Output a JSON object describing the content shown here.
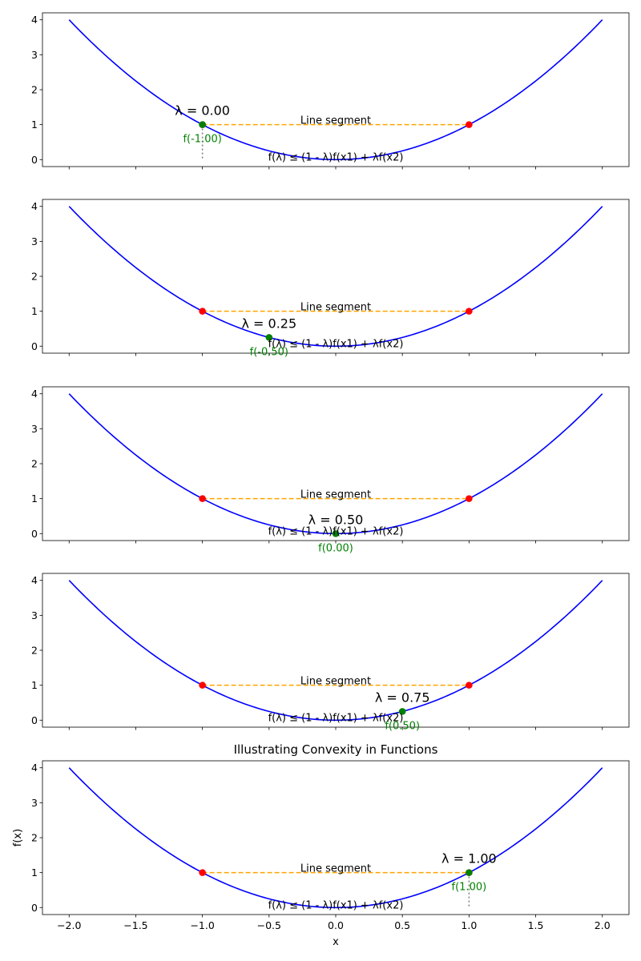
{
  "chart_data": [
    {
      "type": "line",
      "title": "",
      "xlabel": "",
      "ylabel": "",
      "xlim": [
        -2.2,
        2.2
      ],
      "ylim": [
        -0.2,
        4.2
      ],
      "xticks": [
        -2.0,
        -1.5,
        -1.0,
        -0.5,
        0.0,
        0.5,
        1.0,
        1.5,
        2.0
      ],
      "xtick_labels": [],
      "yticks": [
        0,
        1,
        2,
        3,
        4
      ],
      "ytick_labels": [
        "0",
        "1",
        "2",
        "3",
        "4"
      ],
      "function": {
        "expression": "x^2",
        "domain": [
          -2,
          2
        ],
        "color": "#0000ff"
      },
      "chord": {
        "x": [
          -1,
          1
        ],
        "y": [
          1,
          1
        ],
        "color": "#ffa500",
        "label": "Line segment"
      },
      "endpoints": {
        "x": [
          -1,
          1
        ],
        "y": [
          1,
          1
        ],
        "color": "#ff0000"
      },
      "point": {
        "lambda_label": "λ = 0.00",
        "x": -1.0,
        "y": 1.0,
        "label": "f(-1.00)",
        "color": "#008000",
        "dotted_drop": true
      },
      "inequality_label": "f(λ) ≤ (1 - λ)f(x1) + λf(x2)"
    },
    {
      "type": "line",
      "title": "",
      "xlabel": "",
      "ylabel": "",
      "xlim": [
        -2.2,
        2.2
      ],
      "ylim": [
        -0.2,
        4.2
      ],
      "xticks": [
        -2.0,
        -1.5,
        -1.0,
        -0.5,
        0.0,
        0.5,
        1.0,
        1.5,
        2.0
      ],
      "xtick_labels": [],
      "yticks": [
        0,
        1,
        2,
        3,
        4
      ],
      "ytick_labels": [
        "0",
        "1",
        "2",
        "3",
        "4"
      ],
      "function": {
        "expression": "x^2",
        "domain": [
          -2,
          2
        ],
        "color": "#0000ff"
      },
      "chord": {
        "x": [
          -1,
          1
        ],
        "y": [
          1,
          1
        ],
        "color": "#ffa500",
        "label": "Line segment"
      },
      "endpoints": {
        "x": [
          -1,
          1
        ],
        "y": [
          1,
          1
        ],
        "color": "#ff0000"
      },
      "point": {
        "lambda_label": "λ = 0.25",
        "x": -0.5,
        "y": 0.25,
        "label": "f(-0.50)",
        "color": "#008000",
        "dotted_drop": false
      },
      "inequality_label": "f(λ) ≤ (1 - λ)f(x1) + λf(x2)"
    },
    {
      "type": "line",
      "title": "",
      "xlabel": "",
      "ylabel": "",
      "xlim": [
        -2.2,
        2.2
      ],
      "ylim": [
        -0.2,
        4.2
      ],
      "xticks": [
        -2.0,
        -1.5,
        -1.0,
        -0.5,
        0.0,
        0.5,
        1.0,
        1.5,
        2.0
      ],
      "xtick_labels": [],
      "yticks": [
        0,
        1,
        2,
        3,
        4
      ],
      "ytick_labels": [
        "0",
        "1",
        "2",
        "3",
        "4"
      ],
      "function": {
        "expression": "x^2",
        "domain": [
          -2,
          2
        ],
        "color": "#0000ff"
      },
      "chord": {
        "x": [
          -1,
          1
        ],
        "y": [
          1,
          1
        ],
        "color": "#ffa500",
        "label": "Line segment"
      },
      "endpoints": {
        "x": [
          -1,
          1
        ],
        "y": [
          1,
          1
        ],
        "color": "#ff0000"
      },
      "point": {
        "lambda_label": "λ = 0.50",
        "x": 0.0,
        "y": 0.0,
        "label": "f(0.00)",
        "color": "#008000",
        "dotted_drop": false
      },
      "inequality_label": "f(λ) ≤ (1 - λ)f(x1) + λf(x2)"
    },
    {
      "type": "line",
      "title": "",
      "xlabel": "",
      "ylabel": "",
      "xlim": [
        -2.2,
        2.2
      ],
      "ylim": [
        -0.2,
        4.2
      ],
      "xticks": [
        -2.0,
        -1.5,
        -1.0,
        -0.5,
        0.0,
        0.5,
        1.0,
        1.5,
        2.0
      ],
      "xtick_labels": [],
      "yticks": [
        0,
        1,
        2,
        3,
        4
      ],
      "ytick_labels": [
        "0",
        "1",
        "2",
        "3",
        "4"
      ],
      "function": {
        "expression": "x^2",
        "domain": [
          -2,
          2
        ],
        "color": "#0000ff"
      },
      "chord": {
        "x": [
          -1,
          1
        ],
        "y": [
          1,
          1
        ],
        "color": "#ffa500",
        "label": "Line segment"
      },
      "endpoints": {
        "x": [
          -1,
          1
        ],
        "y": [
          1,
          1
        ],
        "color": "#ff0000"
      },
      "point": {
        "lambda_label": "λ = 0.75",
        "x": 0.5,
        "y": 0.25,
        "label": "f(0.50)",
        "color": "#008000",
        "dotted_drop": false
      },
      "inequality_label": "f(λ) ≤ (1 - λ)f(x1) + λf(x2)"
    },
    {
      "type": "line",
      "title": "Illustrating Convexity in Functions",
      "xlabel": "x",
      "ylabel": "f(x)",
      "xlim": [
        -2.2,
        2.2
      ],
      "ylim": [
        -0.2,
        4.2
      ],
      "xticks": [
        -2.0,
        -1.5,
        -1.0,
        -0.5,
        0.0,
        0.5,
        1.0,
        1.5,
        2.0
      ],
      "xtick_labels": [
        "−2.0",
        "−1.5",
        "−1.0",
        "−0.5",
        "0.0",
        "0.5",
        "1.0",
        "1.5",
        "2.0"
      ],
      "yticks": [
        0,
        1,
        2,
        3,
        4
      ],
      "ytick_labels": [
        "0",
        "1",
        "2",
        "3",
        "4"
      ],
      "function": {
        "expression": "x^2",
        "domain": [
          -2,
          2
        ],
        "color": "#0000ff"
      },
      "chord": {
        "x": [
          -1,
          1
        ],
        "y": [
          1,
          1
        ],
        "color": "#ffa500",
        "label": "Line segment"
      },
      "endpoints": {
        "x": [
          -1,
          1
        ],
        "y": [
          1,
          1
        ],
        "color": "#ff0000"
      },
      "point": {
        "lambda_label": "λ = 1.00",
        "x": 1.0,
        "y": 1.0,
        "label": "f(1.00)",
        "color": "#008000",
        "dotted_drop": true
      },
      "inequality_label": "f(λ) ≤ (1 - λ)f(x1) + λf(x2)"
    }
  ]
}
